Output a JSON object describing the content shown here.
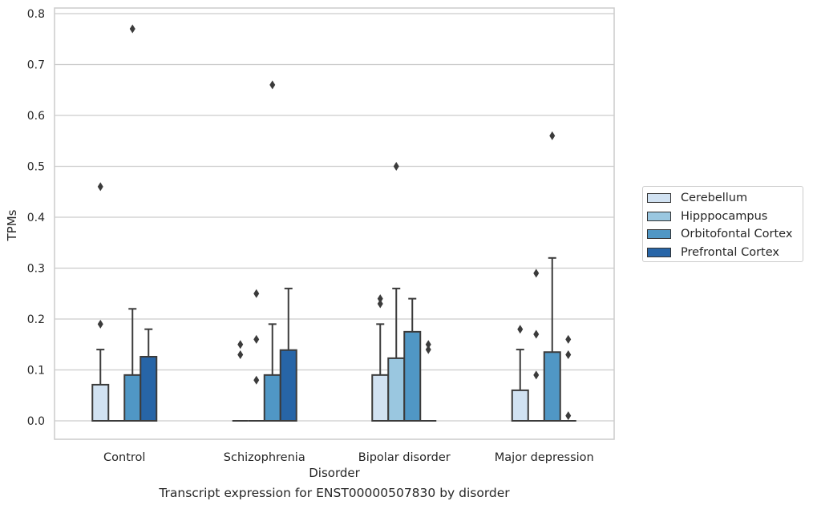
{
  "caption": "Transcript expression for ENST00000507830 by disorder",
  "legend": {
    "items": [
      {
        "label": "Cerebellum",
        "color": "#d1e2f2"
      },
      {
        "label": "Hipppocampus",
        "color": "#9ac7e0"
      },
      {
        "label": "Orbitofontal Cortex",
        "color": "#5097c5"
      },
      {
        "label": "Prefrontal Cortex",
        "color": "#2765a7"
      }
    ],
    "placement": "right, outside plot"
  },
  "chart_data": {
    "type": "box",
    "xlabel": "Disorder",
    "ylabel": "TPMs",
    "ylim": [
      -0.038,
      0.812
    ],
    "yticks": [
      0.0,
      0.1,
      0.2,
      0.3,
      0.4,
      0.5,
      0.6,
      0.7,
      0.8
    ],
    "ytick_labels": [
      "0.0",
      "0.1",
      "0.2",
      "0.3",
      "0.4",
      "0.5",
      "0.6",
      "0.7",
      "0.8"
    ],
    "grid": "horizontal",
    "categories": [
      "Control",
      "Schizophrenia",
      "Bipolar disorder",
      "Major depression"
    ],
    "series": [
      {
        "name": "Cerebellum",
        "color": "#d1e2f2",
        "boxes": [
          {
            "q1": 0,
            "median": 0,
            "q3": 0.071,
            "whisker_low": 0,
            "whisker_high": 0.14,
            "outliers": [
              0.46,
              0.19
            ]
          },
          {
            "q1": 0,
            "median": 0,
            "q3": 0,
            "whisker_low": 0,
            "whisker_high": 0,
            "outliers": [
              0.15,
              0.13
            ]
          },
          {
            "q1": 0,
            "median": 0,
            "q3": 0.09,
            "whisker_low": 0,
            "whisker_high": 0.19,
            "outliers": [
              0.24,
              0.23
            ]
          },
          {
            "q1": 0,
            "median": 0,
            "q3": 0.06,
            "whisker_low": 0,
            "whisker_high": 0.14,
            "outliers": [
              0.18
            ]
          }
        ]
      },
      {
        "name": "Hipppocampus",
        "color": "#9ac7e0",
        "boxes": [
          {
            "q1": 0,
            "median": 0,
            "q3": 0,
            "whisker_low": 0,
            "whisker_high": 0,
            "outliers": []
          },
          {
            "q1": 0,
            "median": 0,
            "q3": 0,
            "whisker_low": 0,
            "whisker_high": 0,
            "outliers": [
              0.25,
              0.16,
              0.08
            ]
          },
          {
            "q1": 0,
            "median": 0,
            "q3": 0.123,
            "whisker_low": 0,
            "whisker_high": 0.26,
            "outliers": [
              0.5
            ]
          },
          {
            "q1": 0,
            "median": 0,
            "q3": 0,
            "whisker_low": 0,
            "whisker_high": 0,
            "outliers": [
              0.29,
              0.17,
              0.09
            ]
          }
        ]
      },
      {
        "name": "Orbitofontal Cortex",
        "color": "#5097c5",
        "boxes": [
          {
            "q1": 0,
            "median": 0,
            "q3": 0.09,
            "whisker_low": 0,
            "whisker_high": 0.22,
            "outliers": [
              0.77
            ]
          },
          {
            "q1": 0,
            "median": 0,
            "q3": 0.09,
            "whisker_low": 0,
            "whisker_high": 0.19,
            "outliers": [
              0.66
            ]
          },
          {
            "q1": 0,
            "median": 0,
            "q3": 0.175,
            "whisker_low": 0,
            "whisker_high": 0.24,
            "outliers": []
          },
          {
            "q1": 0,
            "median": 0,
            "q3": 0.135,
            "whisker_low": 0,
            "whisker_high": 0.32,
            "outliers": [
              0.56
            ]
          }
        ]
      },
      {
        "name": "Prefrontal Cortex",
        "color": "#2765a7",
        "boxes": [
          {
            "q1": 0,
            "median": 0,
            "q3": 0.126,
            "whisker_low": 0,
            "whisker_high": 0.18,
            "outliers": []
          },
          {
            "q1": 0,
            "median": 0,
            "q3": 0.139,
            "whisker_low": 0,
            "whisker_high": 0.26,
            "outliers": []
          },
          {
            "q1": 0,
            "median": 0,
            "q3": 0,
            "whisker_low": 0,
            "whisker_high": 0,
            "outliers": [
              0.15,
              0.14
            ]
          },
          {
            "q1": 0,
            "median": 0,
            "q3": 0,
            "whisker_low": 0,
            "whisker_high": 0,
            "outliers": [
              0.16,
              0.13,
              0.01
            ]
          }
        ]
      }
    ]
  }
}
